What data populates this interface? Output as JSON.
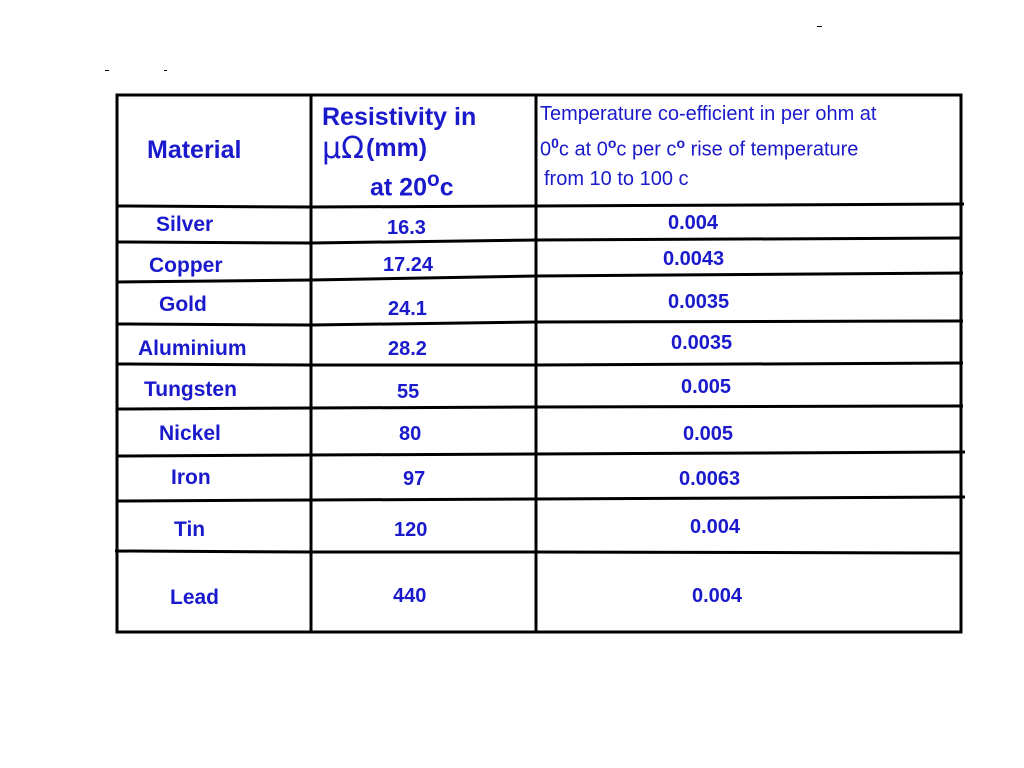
{
  "table": {
    "headers": {
      "material": "Material",
      "resistivity_line1": "Resistivity in",
      "resistivity_symbol": "µΩ",
      "resistivity_unit": "(mm)",
      "resistivity_line3": "at 20",
      "resistivity_line3_sup": "o",
      "resistivity_line3_suffix": "c",
      "temp_line1": "Temperature co-efficient in per ohm at",
      "temp_line2_a": "0",
      "temp_line2_sup1": "0",
      "temp_line2_b": "c at 0",
      "temp_line2_sup2": "o",
      "temp_line2_c": "c per c",
      "temp_line2_sup3": "o",
      "temp_line2_d": "rise of temperature",
      "temp_line3": "from  10 to 100 c"
    },
    "rows": [
      {
        "material": "Silver",
        "resistivity": "16.3",
        "coefficient": "0.004"
      },
      {
        "material": "Copper",
        "resistivity": "17.24",
        "coefficient": "0.0043"
      },
      {
        "material": "Gold",
        "resistivity": "24.1",
        "coefficient": "0.0035"
      },
      {
        "material": "Aluminium",
        "resistivity": "28.2",
        "coefficient": "0.0035"
      },
      {
        "material": "Tungsten",
        "resistivity": "55",
        "coefficient": "0.005"
      },
      {
        "material": "Nickel",
        "resistivity": "80",
        "coefficient": "0.005"
      },
      {
        "material": "Iron",
        "resistivity": "97",
        "coefficient": "0.0063"
      },
      {
        "material": "Tin",
        "resistivity": "120",
        "coefficient": "0.004"
      },
      {
        "material": "Lead",
        "resistivity": "440",
        "coefficient": "0.004"
      }
    ]
  },
  "colors": {
    "text": "#1a1acc",
    "lines": "#000000"
  }
}
